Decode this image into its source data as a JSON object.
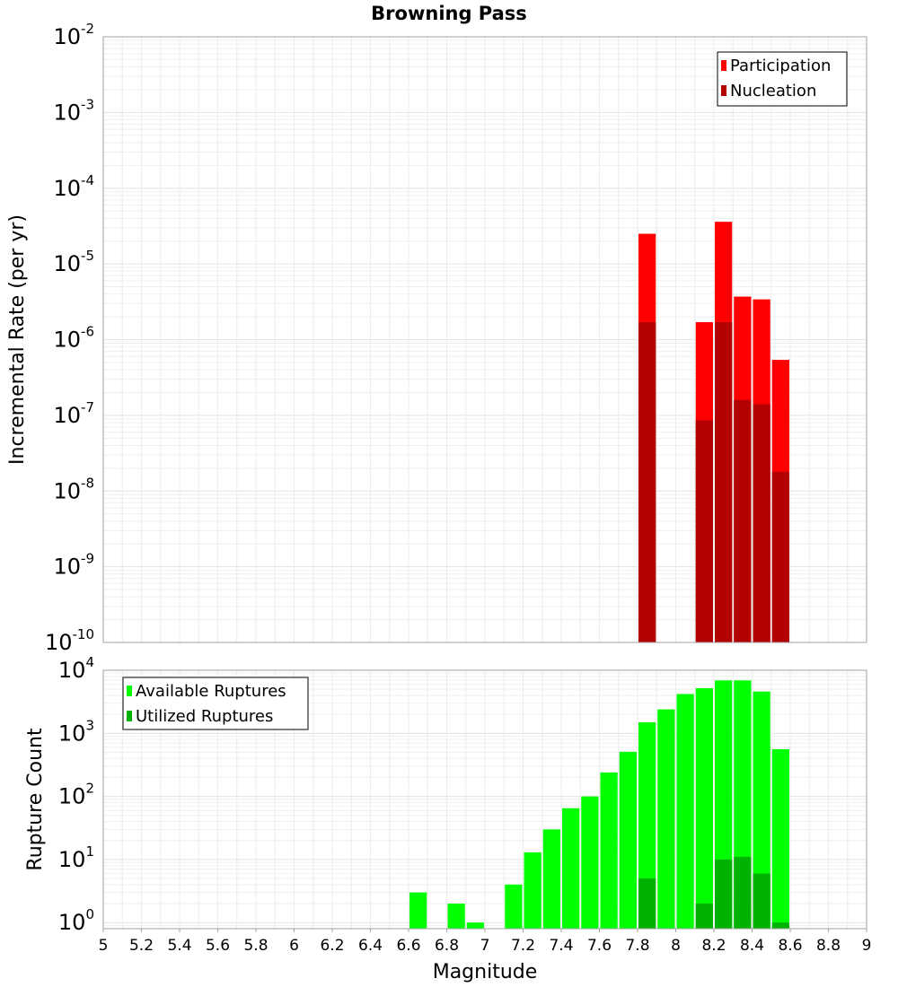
{
  "title": "Browning Pass",
  "chart_data": [
    {
      "type": "bar",
      "name": "rate-chart",
      "title": "Browning Pass",
      "xlabel": "Magnitude",
      "ylabel": "Incremental Rate (per yr)",
      "xlim": [
        5,
        9
      ],
      "ylim": [
        1e-10,
        0.01
      ],
      "yscale": "log",
      "grid": true,
      "legend_position": "top-right",
      "bin_width": 0.1,
      "x_ticks": [
        "5",
        "5.2",
        "5.4",
        "5.6",
        "5.8",
        "6",
        "6.2",
        "6.4",
        "6.6",
        "6.8",
        "7",
        "7.2",
        "7.4",
        "7.6",
        "7.8",
        "8",
        "8.2",
        "8.4",
        "8.6",
        "8.8",
        "9"
      ],
      "y_tick_exponents": [
        "-10",
        "-9",
        "-8",
        "-7",
        "-6",
        "-5",
        "-4",
        "-3",
        "-2"
      ],
      "y_tick_base": "10",
      "x": [
        7.85,
        8.15,
        8.25,
        8.35,
        8.45,
        8.55
      ],
      "series": [
        {
          "name": "Participation",
          "color": "#ff0000",
          "values": [
            2.5e-05,
            1.7e-06,
            3.6e-05,
            3.7e-06,
            3.4e-06,
            5.4e-07
          ]
        },
        {
          "name": "Nucleation",
          "color": "#b30000",
          "values": [
            1.7e-06,
            8.6e-08,
            1.7e-06,
            1.6e-07,
            1.4e-07,
            1.8e-08
          ]
        }
      ]
    },
    {
      "type": "bar",
      "name": "count-chart",
      "xlabel": "Magnitude",
      "ylabel": "Rupture Count",
      "xlim": [
        5,
        9
      ],
      "ylim": [
        0.8,
        10000
      ],
      "yscale": "log",
      "grid": true,
      "legend_position": "top-left",
      "bin_width": 0.1,
      "y_tick_exponents": [
        "0",
        "1",
        "2",
        "3",
        "4"
      ],
      "y_tick_base": "10",
      "x": [
        6.65,
        6.85,
        6.95,
        7.15,
        7.25,
        7.35,
        7.45,
        7.55,
        7.65,
        7.75,
        7.85,
        7.95,
        8.05,
        8.15,
        8.25,
        8.35,
        8.45,
        8.55
      ],
      "series": [
        {
          "name": "Available Ruptures",
          "color": "#00ff00",
          "values": [
            3,
            2,
            1,
            4,
            13,
            30,
            65,
            100,
            240,
            510,
            1500,
            2400,
            4200,
            5200,
            6900,
            6900,
            4600,
            560
          ]
        },
        {
          "name": "Utilized Ruptures",
          "color": "#00b300",
          "values": [
            0,
            0,
            0,
            0,
            0,
            0,
            0,
            0,
            0,
            0,
            5,
            0,
            0,
            2,
            10,
            11,
            6,
            1
          ]
        }
      ]
    }
  ]
}
